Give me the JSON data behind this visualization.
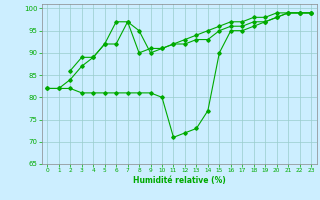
{
  "xlabel": "Humidité relative (%)",
  "background_color": "#cceeff",
  "grid_color": "#99cccc",
  "line_color": "#00aa00",
  "xlim": [
    -0.5,
    23.5
  ],
  "ylim": [
    65,
    101
  ],
  "yticks": [
    65,
    70,
    75,
    80,
    85,
    90,
    95,
    100
  ],
  "xticks": [
    0,
    1,
    2,
    3,
    4,
    5,
    6,
    7,
    8,
    9,
    10,
    11,
    12,
    13,
    14,
    15,
    16,
    17,
    18,
    19,
    20,
    21,
    22,
    23
  ],
  "line1_x": [
    0,
    1,
    2,
    3,
    4,
    5,
    6,
    7,
    8,
    9,
    10,
    11,
    12,
    13,
    14,
    15,
    16,
    17,
    18,
    19,
    20,
    21,
    22,
    23
  ],
  "line1_y": [
    82,
    82,
    82,
    81,
    81,
    81,
    81,
    81,
    81,
    81,
    80,
    71,
    72,
    73,
    77,
    90,
    95,
    95,
    96,
    97,
    98,
    99,
    99,
    99
  ],
  "line2_x": [
    2,
    3,
    4,
    5,
    6,
    7,
    8,
    9,
    10,
    11,
    12,
    13,
    14,
    15,
    16,
    17,
    18,
    19,
    20,
    21,
    22,
    23
  ],
  "line2_y": [
    86,
    89,
    89,
    92,
    92,
    97,
    90,
    91,
    91,
    92,
    92,
    93,
    93,
    95,
    96,
    96,
    97,
    97,
    98,
    99,
    99,
    99
  ],
  "line3_x": [
    0,
    1,
    2,
    3,
    4,
    5,
    6,
    7,
    8,
    9,
    10,
    11,
    12,
    13,
    14,
    15,
    16,
    17,
    18,
    19,
    20,
    21,
    22,
    23
  ],
  "line3_y": [
    82,
    82,
    84,
    87,
    89,
    92,
    97,
    97,
    95,
    90,
    91,
    92,
    93,
    94,
    95,
    96,
    97,
    97,
    98,
    98,
    99,
    99,
    99,
    99
  ]
}
